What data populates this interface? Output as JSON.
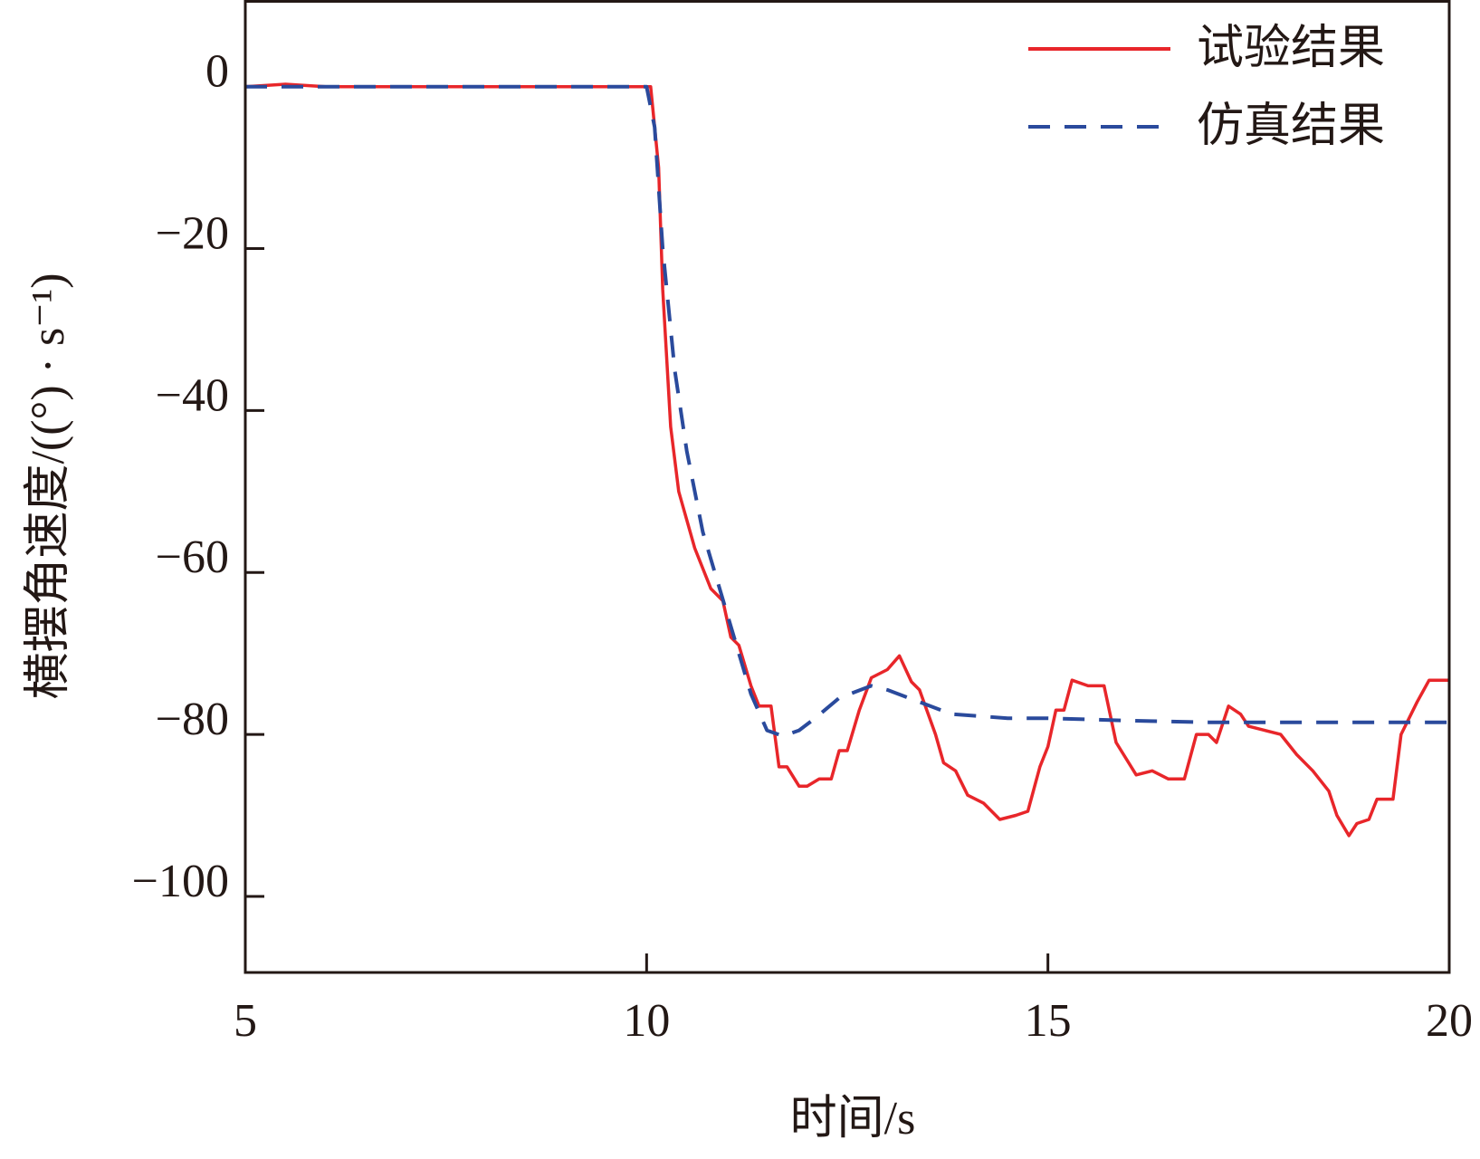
{
  "chart_data": {
    "type": "line",
    "xlabel": "时间/s",
    "ylabel": "横摆角速度/((°) · s⁻¹)",
    "xlim": [
      5,
      20
    ],
    "xticks": [
      5,
      10,
      15,
      20
    ],
    "ylim": [
      -109.4,
      10.7
    ],
    "yticks": [
      0,
      {
        "value": -20,
        "label": "−20"
      },
      {
        "value": -40,
        "label": "−40"
      },
      {
        "value": -60,
        "label": "−60"
      },
      {
        "value": -80,
        "label": "−80"
      },
      {
        "value": -100,
        "label": "−100"
      }
    ],
    "legend": "upper right",
    "series": [
      {
        "name": "试验结果",
        "color": "#e8262a",
        "dash": false,
        "x": [
          5,
          5.5,
          6,
          7,
          8,
          9,
          10.05,
          10.15,
          10.2,
          10.3,
          10.4,
          10.6,
          10.8,
          10.95,
          11.05,
          11.15,
          11.3,
          11.4,
          11.55,
          11.65,
          11.75,
          11.9,
          12.0,
          12.15,
          12.3,
          12.4,
          12.5,
          12.65,
          12.8,
          13.0,
          13.15,
          13.3,
          13.4,
          13.6,
          13.7,
          13.85,
          14.0,
          14.2,
          14.4,
          14.6,
          14.75,
          14.9,
          15.0,
          15.1,
          15.2,
          15.3,
          15.5,
          15.7,
          15.85,
          16.1,
          16.3,
          16.5,
          16.7,
          16.85,
          17.0,
          17.1,
          17.25,
          17.4,
          17.5,
          17.7,
          17.9,
          18.1,
          18.3,
          18.5,
          18.6,
          18.75,
          18.85,
          19.0,
          19.1,
          19.3,
          19.4,
          19.6,
          19.75,
          20
        ],
        "values": [
          0,
          0.3,
          0,
          0,
          0,
          0,
          0,
          -10,
          -25,
          -42,
          -50,
          -57,
          -62,
          -63.5,
          -68,
          -69,
          -74,
          -76.5,
          -76.5,
          -84,
          -84,
          -86.4,
          -86.4,
          -85.5,
          -85.5,
          -82,
          -82,
          -77,
          -73,
          -72,
          -70.3,
          -73.5,
          -74.5,
          -80,
          -83.5,
          -84.5,
          -87.5,
          -88.5,
          -90.5,
          -90,
          -89.5,
          -84,
          -81.5,
          -77,
          -77,
          -73.3,
          -74,
          -74,
          -81,
          -85,
          -84.5,
          -85.5,
          -85.5,
          -80,
          -80,
          -81,
          -76.5,
          -77.5,
          -79,
          -79.5,
          -80,
          -82.5,
          -84.5,
          -87,
          -90,
          -92.5,
          -91,
          -90.5,
          -88,
          -88,
          -80,
          -76,
          -73.3,
          -73.3
        ]
      },
      {
        "name": "仿真结果",
        "color": "#2a4a9c",
        "dash": true,
        "x": [
          5,
          10.0,
          10.1,
          10.2,
          10.35,
          10.5,
          10.7,
          11.0,
          11.3,
          11.5,
          11.7,
          11.9,
          12.1,
          12.4,
          12.8,
          13.0,
          13.4,
          13.8,
          14.5,
          15,
          16,
          17,
          18,
          19,
          20
        ],
        "values": [
          0,
          0,
          -5,
          -20,
          -35,
          -45,
          -55,
          -65,
          -75,
          -79.5,
          -80.2,
          -79.5,
          -78,
          -75.5,
          -74,
          -74.5,
          -76,
          -77.5,
          -78,
          -78,
          -78.3,
          -78.5,
          -78.5,
          -78.5,
          -78.5
        ]
      }
    ]
  }
}
